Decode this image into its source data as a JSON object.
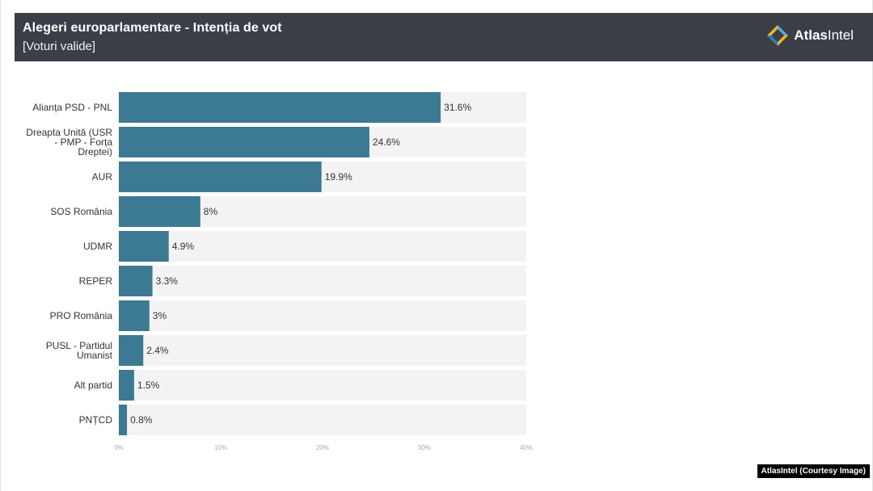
{
  "header": {
    "title": "Alegeri europarlamentare - Intenția de vot",
    "subtitle": "[Voturi valide]",
    "logo_text_bold": "Atlas",
    "logo_text_regular": "Intel"
  },
  "credit": "AtlasIntel (Courtesy Image)",
  "colors": {
    "bar": "#3c7a94",
    "track": "#f3f3f3",
    "header_bg": "#3a3f47"
  },
  "chart_data": {
    "type": "bar",
    "orientation": "horizontal",
    "title": "Alegeri europarlamentare - Intenția de vot",
    "subtitle": "[Voturi valide]",
    "categories": [
      [
        "Alianța PSD - PNL"
      ],
      [
        "Dreapta Unită (USR",
        "- PMP - Forța",
        "Dreptei)"
      ],
      [
        "AUR"
      ],
      [
        "SOS România"
      ],
      [
        "UDMR"
      ],
      [
        "REPER"
      ],
      [
        "PRO România"
      ],
      [
        "PUSL - Partidul",
        "Umanist"
      ],
      [
        "Alt partid"
      ],
      [
        "PNȚCD"
      ]
    ],
    "values": [
      31.6,
      24.6,
      19.9,
      8,
      4.9,
      3.3,
      3,
      2.4,
      1.5,
      0.8
    ],
    "value_labels": [
      "31.6%",
      "24.6%",
      "19.9%",
      "8%",
      "4.9%",
      "3.3%",
      "3%",
      "2.4%",
      "1.5%",
      "0.8%"
    ],
    "xlim": [
      0,
      40
    ],
    "xticks": [
      0,
      10,
      20,
      30,
      40
    ],
    "xtick_labels": [
      "0%",
      "10%",
      "20%",
      "30%",
      "40%"
    ],
    "grid": false
  }
}
